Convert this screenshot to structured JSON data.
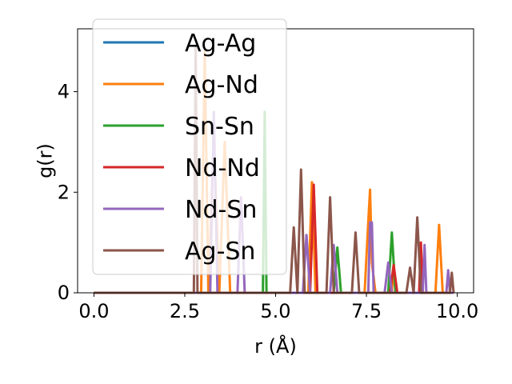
{
  "chart_data": {
    "type": "line",
    "xlabel": "r (Å)",
    "ylabel": "g(r)",
    "xlim": [
      -0.45,
      10.45
    ],
    "ylim": [
      0,
      5.25
    ],
    "xticks": [
      0.0,
      2.5,
      5.0,
      7.5,
      10.0
    ],
    "xtick_labels": [
      "0.0",
      "2.5",
      "5.0",
      "7.5",
      "10.0"
    ],
    "yticks": [
      0,
      2,
      4
    ],
    "ytick_labels": [
      "0",
      "2",
      "4"
    ],
    "grid": false,
    "legend_position": "top-left",
    "series": [
      {
        "name": "Ag-Ag",
        "color": "#1f77b4",
        "x": [
          0.0,
          9.9
        ],
        "y": [
          0.0,
          0.0
        ]
      },
      {
        "name": "Ag-Nd",
        "color": "#ff7f0e",
        "x": [
          0.0,
          2.95,
          3.05,
          3.15,
          3.3,
          3.45,
          3.6,
          3.75,
          3.9,
          5.9,
          6.0,
          6.1,
          6.2,
          7.45,
          7.55,
          7.6,
          7.65,
          7.75,
          8.2,
          8.25,
          8.3,
          9.4,
          9.5,
          9.6,
          9.9
        ],
        "y": [
          0.0,
          0.0,
          4.8,
          0.0,
          3.1,
          0.0,
          3.0,
          0.0,
          0.0,
          0.0,
          2.2,
          0.0,
          0.0,
          0.0,
          1.4,
          2.05,
          0.6,
          0.0,
          0.0,
          0.6,
          0.0,
          0.0,
          1.35,
          0.0,
          0.0
        ]
      },
      {
        "name": "Sn-Sn",
        "color": "#2ca02c",
        "x": [
          0.0,
          4.65,
          4.7,
          4.75,
          6.6,
          6.7,
          6.8,
          8.1,
          8.2,
          8.3,
          9.9
        ],
        "y": [
          0.0,
          0.0,
          3.6,
          0.0,
          0.0,
          0.9,
          0.0,
          0.0,
          1.2,
          0.0,
          0.0
        ]
      },
      {
        "name": "Nd-Nd",
        "color": "#d62728",
        "x": [
          0.0,
          5.95,
          6.05,
          6.15,
          8.15,
          8.25,
          8.35,
          8.95,
          9.0,
          9.05,
          9.9
        ],
        "y": [
          0.0,
          0.0,
          2.15,
          0.0,
          0.0,
          0.55,
          0.0,
          0.0,
          1.0,
          0.0,
          0.0
        ]
      },
      {
        "name": "Nd-Sn",
        "color": "#9467bd",
        "x": [
          0.0,
          3.2,
          3.3,
          3.4,
          3.95,
          4.05,
          4.15,
          5.75,
          5.85,
          5.95,
          6.5,
          6.6,
          6.7,
          7.55,
          7.6,
          7.65,
          7.7,
          8.0,
          8.1,
          8.2,
          9.05,
          9.1,
          9.15,
          9.7,
          9.75,
          9.8,
          9.9
        ],
        "y": [
          0.0,
          0.0,
          3.6,
          0.0,
          0.0,
          1.9,
          0.0,
          0.0,
          1.15,
          0.0,
          0.0,
          0.95,
          0.0,
          0.0,
          1.4,
          1.4,
          0.0,
          0.0,
          0.6,
          0.0,
          0.0,
          0.95,
          0.0,
          0.0,
          0.45,
          0.0,
          0.0
        ]
      },
      {
        "name": "Ag-Sn",
        "color": "#8c564b",
        "x": [
          0.0,
          2.75,
          2.8,
          2.85,
          5.4,
          5.5,
          5.6,
          5.7,
          5.8,
          6.4,
          6.5,
          6.6,
          7.1,
          7.2,
          7.3,
          8.6,
          8.7,
          8.8,
          8.9,
          9.0,
          9.8,
          9.85,
          9.9
        ],
        "y": [
          0.0,
          0.0,
          4.9,
          0.0,
          0.0,
          1.3,
          0.0,
          2.45,
          0.0,
          0.0,
          1.9,
          0.0,
          0.0,
          1.2,
          0.0,
          0.0,
          0.5,
          0.0,
          1.5,
          0.0,
          0.0,
          0.4,
          0.0
        ]
      }
    ]
  }
}
